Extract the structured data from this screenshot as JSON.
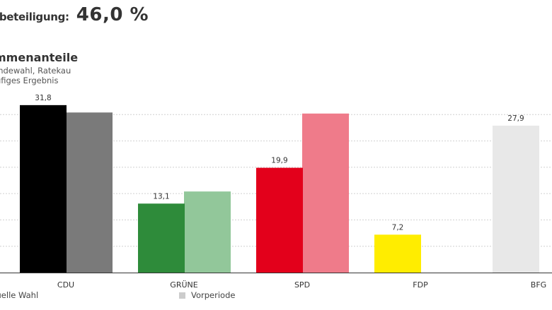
{
  "header": {
    "turnout_label": "lbeteiligung:",
    "turnout_value": "46,0 %"
  },
  "chart_data": {
    "type": "bar",
    "title": "mmenanteile",
    "subtitle": [
      "indewahl, Ratekau",
      "ufiges Ergebnis"
    ],
    "categories": [
      "CDU",
      "GRÜNE",
      "SPD",
      "FDP",
      "BFG"
    ],
    "series": [
      {
        "name": "tuelle Wahl",
        "values": [
          31.8,
          13.1,
          19.9,
          7.2,
          27.9
        ],
        "labels": [
          "31,8",
          "13,1",
          "19,9",
          "7,2",
          "27,9"
        ],
        "colors": [
          "#000000",
          "#2e8b3a",
          "#e3001b",
          "#ffed00",
          "#e8e8e8"
        ]
      },
      {
        "name": "Vorperiode",
        "values": [
          30.4,
          15.4,
          30.2,
          null,
          null
        ],
        "colors": [
          "#7a7a7a",
          "#92c79a",
          "#ef7b8a",
          "#fff3a0",
          "#f2f2f2"
        ]
      }
    ],
    "ylim": [
      0,
      35
    ],
    "grid": true,
    "legend_placement": "bottom-left"
  },
  "legend": {
    "current_label": "tuelle Wahl",
    "previous_label": "Vorperiode"
  }
}
